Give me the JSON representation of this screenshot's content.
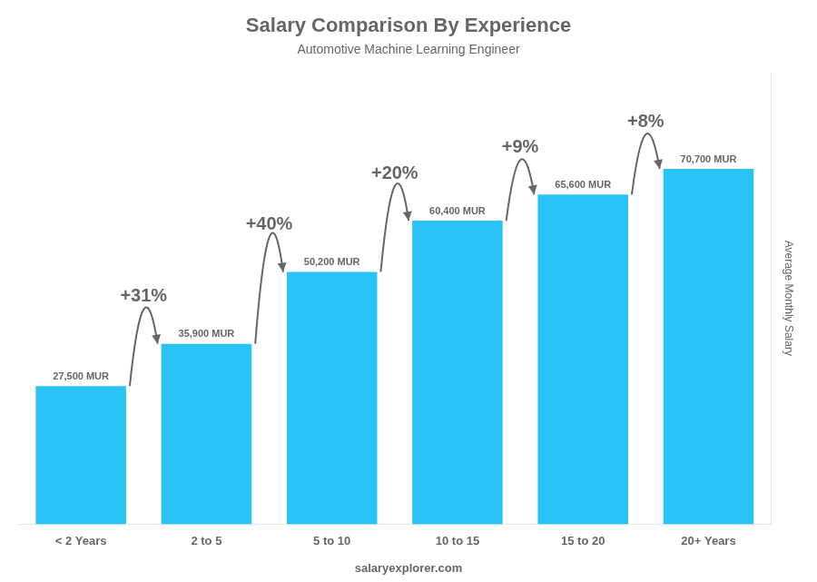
{
  "chart_data": {
    "type": "bar",
    "title": "Salary Comparison By Experience",
    "subtitle": "Automotive Machine Learning Engineer",
    "categories": [
      "< 2 Years",
      "2 to 5",
      "5 to 10",
      "10 to 15",
      "15 to 20",
      "20+ Years"
    ],
    "values": [
      27500,
      35900,
      50200,
      60400,
      65600,
      70700
    ],
    "value_labels": [
      "27,500 MUR",
      "35,900 MUR",
      "50,200 MUR",
      "60,400 MUR",
      "65,600 MUR",
      "70,700 MUR"
    ],
    "data_labels": true,
    "annotations": [
      null,
      "+31%",
      "+40%",
      "+20%",
      "+9%",
      "+8%"
    ],
    "ylabel": "Average Monthly Salary",
    "footer": "salaryexplorer.com",
    "color": "#29C4F5",
    "ylim": [
      0,
      90000
    ],
    "grid": false,
    "tick_labels": "x"
  }
}
